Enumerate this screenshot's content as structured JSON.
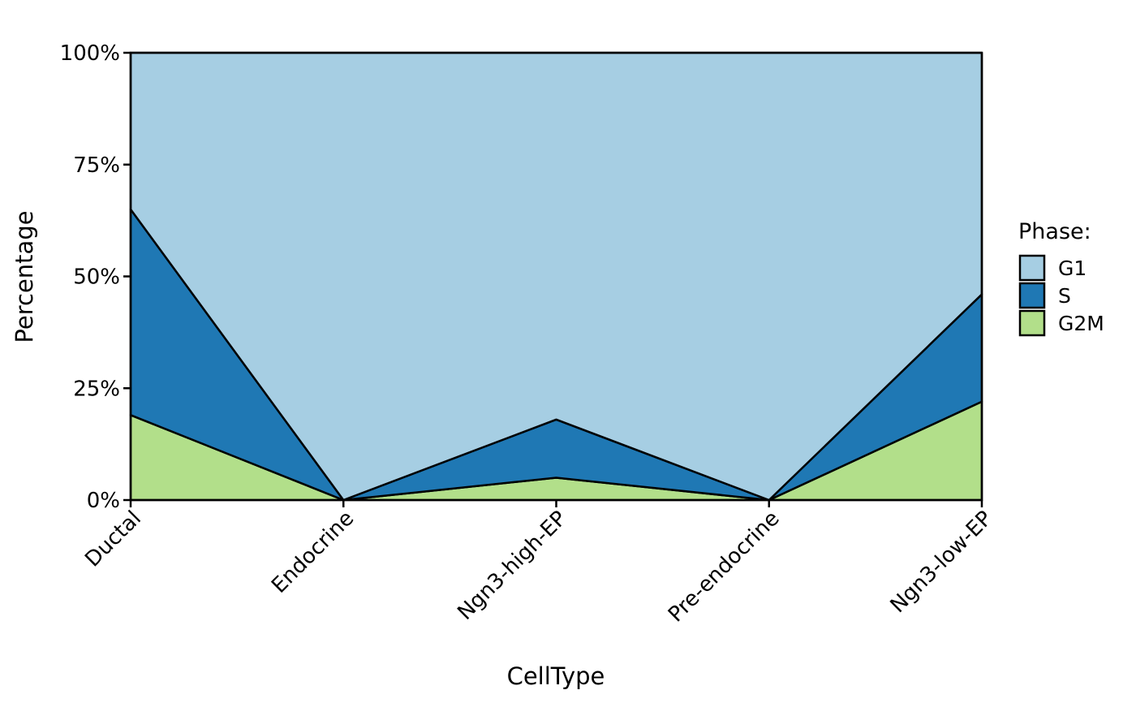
{
  "chart_data": {
    "type": "area",
    "stacked": true,
    "normalized": true,
    "x": [
      "Ductal",
      "Endocrine",
      "Ngn3-high-EP",
      "Pre-endocrine",
      "Ngn3-low-EP"
    ],
    "xlabel": "CellType",
    "ylabel": "Percentage",
    "ylim": [
      0,
      100
    ],
    "yticks": [
      "0%",
      "25%",
      "50%",
      "75%",
      "100%"
    ],
    "yticks_values": [
      0,
      25,
      50,
      75,
      100
    ],
    "legend_title": "Phase:",
    "legend_position": "right",
    "grid": false,
    "series": [
      {
        "name": "G1",
        "color": "#A6CEE3",
        "values": [
          35,
          100,
          82,
          100,
          54
        ]
      },
      {
        "name": "S",
        "color": "#1F78B4",
        "values": [
          46,
          0,
          13,
          0,
          24
        ]
      },
      {
        "name": "G2M",
        "color": "#B2DF8A",
        "values": [
          19,
          0,
          5,
          0,
          22
        ]
      }
    ]
  }
}
